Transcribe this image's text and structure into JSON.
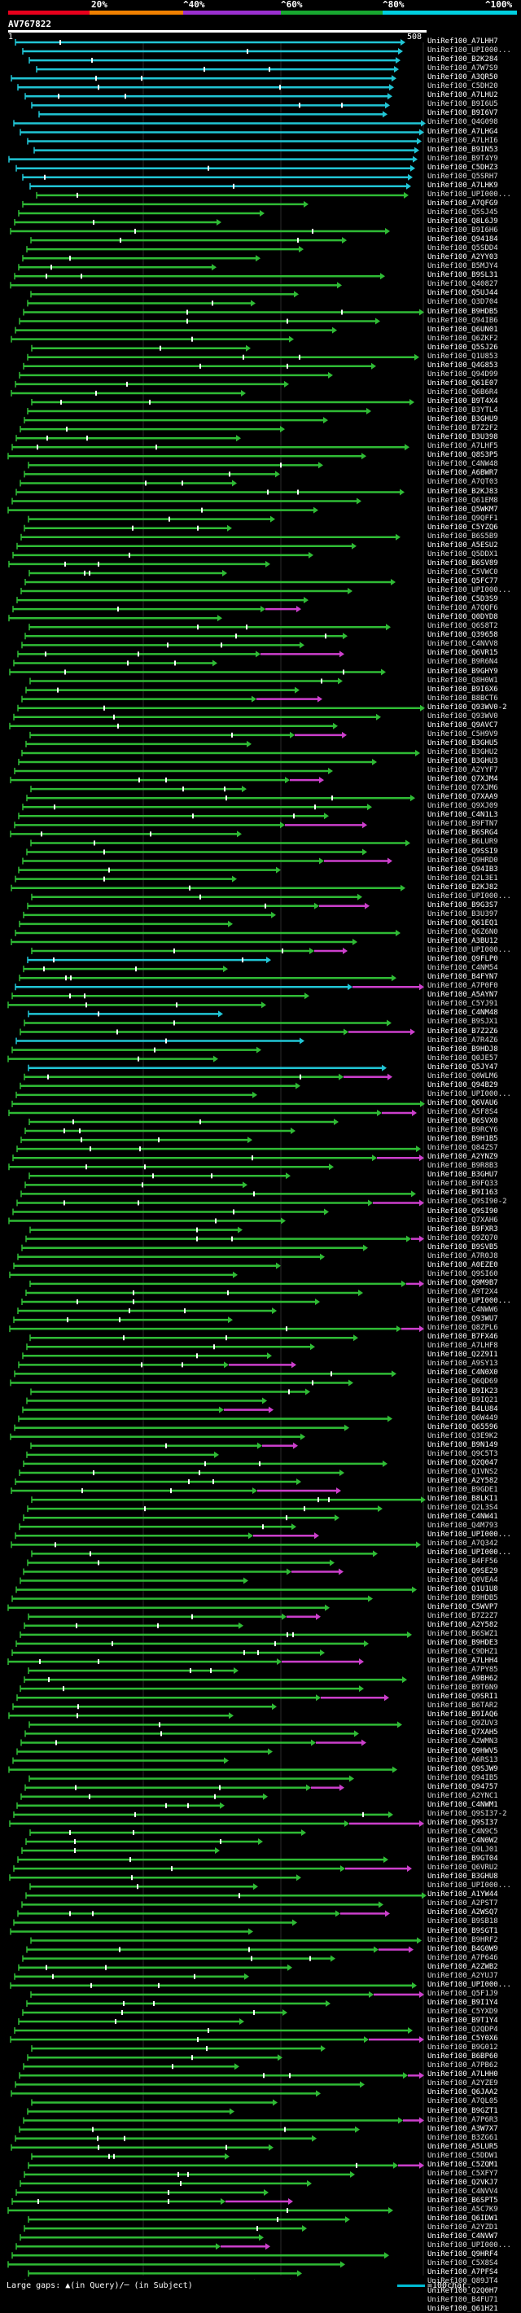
{
  "legend": {
    "labels": [
      "20%",
      "^40%",
      "^60%",
      "^80%",
      "^100%"
    ],
    "colors": [
      "#e8001c",
      "#f08000",
      "#9b30d0",
      "#18a830",
      "#00d0e0"
    ]
  },
  "query": {
    "title": "AV767822",
    "start": "1",
    "end": "508"
  },
  "hits": [
    "UniRef100_A7LHH7",
    "UniRef100_UPI000...",
    "UniRef100_B2K284",
    "UniRef100_A7W7S9",
    "UniRef100_A3QR50",
    "UniRef100_C5DH20",
    "UniRef100_A7LHU2",
    "UniRef100_B9I6U5",
    "UniRef100_B9I6V7",
    "UniRef100_Q4G098",
    "UniRef100_A7LHG4",
    "UniRef100_A7LHI6",
    "UniRef100_B9IN53",
    "UniRef100_B9T4Y9",
    "UniRef100_C5DHZ3",
    "UniRef100_Q5SRH7",
    "UniRef100_A7LHK9",
    "UniRef100_UPI000...",
    "UniRef100_A7QFG9",
    "UniRef100_Q5SJ45",
    "UniRef100_Q8L6J9",
    "UniRef100_B9I6H6",
    "UniRef100_Q94184",
    "UniRef100_Q5SDD4",
    "UniRef100_A2YY03",
    "UniRef100_B5MJY4",
    "UniRef100_B9SL31",
    "UniRef100_Q40827",
    "UniRef100_Q5UJ44",
    "UniRef100_Q3D704",
    "UniRef100_B9HDB5",
    "UniRef100_Q94IB6",
    "UniRef100_Q6UN01",
    "UniRef100_Q6ZKF2",
    "UniRef100_Q5SJ26",
    "UniRef100_Q1U853",
    "UniRef100_Q4G853",
    "UniRef100_Q94D99",
    "UniRef100_Q61E07",
    "UniRef100_Q6B6R4",
    "UniRef100_B9T4X4",
    "UniRef100_B3YTL4",
    "UniRef100_B3GHU9",
    "UniRef100_B7Z2F2",
    "UniRef100_B3U398",
    "UniRef100_A7LHF5",
    "UniRef100_Q8S3P5",
    "UniRef100_C4NW48",
    "UniRef100_A6BWR7",
    "UniRef100_A7QT03",
    "UniRef100_B2KJ83",
    "UniRef100_Q61EM8",
    "UniRef100_Q5WKM7",
    "UniRef100_Q9QFF1",
    "UniRef100_C5YZQ6",
    "UniRef100_B6S5B9",
    "UniRef100_A5ESU2",
    "UniRef100_Q5DDX1",
    "UniRef100_B6SV89",
    "UniRef100_C5VWC0",
    "UniRef100_Q5FC77",
    "UniRef100_UPI000...",
    "UniRef100_C5D3S9",
    "UniRef100_A7QQF6",
    "UniRef100_Q0DYD8",
    "UniRef100_Q6S8T2",
    "UniRef100_Q39658",
    "UniRef100_C4NVV8",
    "UniRef100_Q6VR15",
    "UniRef100_B9R6N4",
    "UniRef100_B9GHY9",
    "UniRef100_Q8H0W1",
    "UniRef100_B9I6X6",
    "UniRef100_B8BCT6",
    "UniRef100_Q93WV0-2",
    "UniRef100_Q93WV0",
    "UniRef100_Q9AVC7",
    "UniRef100_C5H9V9",
    "UniRef100_B3GHU5",
    "UniRef100_B3GHU2",
    "UniRef100_B3GHU3",
    "UniRef100_A2YYF7",
    "UniRef100_Q7XJM4",
    "UniRef100_Q7XJM6",
    "UniRef100_Q7XAA9",
    "UniRef100_Q9XJ09",
    "UniRef100_C4N1L3",
    "UniRef100_B9FTN7",
    "UniRef100_B6SRG4",
    "UniRef100_B6LUR9",
    "UniRef100_Q9SSI9",
    "UniRef100_Q9HRD0",
    "UniRef100_Q94IB3",
    "UniRef100_Q2L3E1",
    "UniRef100_B2KJ82",
    "UniRef100_UPI000...",
    "UniRef100_B9G3S7",
    "UniRef100_B3U397",
    "UniRef100_Q61EQ1",
    "UniRef100_Q6Z6N0",
    "UniRef100_A3BU12",
    "UniRef100_UPI000...",
    "UniRef100_Q9FLP0",
    "UniRef100_C4NM54",
    "UniRef100_B4FYN7",
    "UniRef100_A7P0F0",
    "UniRef100_A5AYN7",
    "UniRef100_C5YJ91",
    "UniRef100_C4NM48",
    "UniRef100_B9SJX1",
    "UniRef100_B7Z2Z6",
    "UniRef100_A7R4Z6",
    "UniRef100_B9HDJ8",
    "UniRef100_Q0JE57",
    "UniRef100_Q5JY47",
    "UniRef100_Q0WLM6",
    "UniRef100_Q94B29",
    "UniRef100_UPI000...",
    "UniRef100_Q6VAU6",
    "UniRef100_A5F8S4",
    "UniRef100_B6SVX0",
    "UniRef100_B9RCY6",
    "UniRef100_B9H1B5",
    "UniRef100_Q84ZS7",
    "UniRef100_A2YNZ9",
    "UniRef100_B9R8B3",
    "UniRef100_B3GHU7",
    "UniRef100_B9FQ33",
    "UniRef100_B9I163",
    "UniRef100_Q9SI90-2",
    "UniRef100_Q9SI90",
    "UniRef100_Q7XAH6",
    "UniRef100_B9FXR3",
    "UniRef100_Q9ZQ70",
    "UniRef100_B9SVB5",
    "UniRef100_A7R0J8",
    "UniRef100_A0EZE0",
    "UniRef100_Q9SI60",
    "UniRef100_Q9M9B7",
    "UniRef100_A9T2X4",
    "UniRef100_UPI000...",
    "UniRef100_C4NWW6",
    "UniRef100_Q93WU7",
    "UniRef100_Q8ZPL6",
    "UniRef100_B7FX46",
    "UniRef100_A7LHF8",
    "UniRef100_Q2Z9I1",
    "UniRef100_A9SY13",
    "UniRef100_C4N0X0",
    "UniRef100_Q6QD69",
    "UniRef100_B9IK23",
    "UniRef100_B9IQ21",
    "UniRef100_B4LU84",
    "UniRef100_Q6W449",
    "UniRef100_Q65596",
    "UniRef100_Q3E9K2",
    "UniRef100_B9N149",
    "UniRef100_Q9C5T3",
    "UniRef100_Q2Q047",
    "UniRef100_Q1VNS2",
    "UniRef100_A2Y582",
    "UniRef100_B9GDE1",
    "UniRef100_B8LKI1",
    "UniRef100_Q2L3S4",
    "UniRef100_C4NW41",
    "UniRef100_Q4M793",
    "UniRef100_UPI000...",
    "UniRef100_A7Q342",
    "UniRef100_UPI000...",
    "UniRef100_B4FF56",
    "UniRef100_Q9SE29",
    "UniRef100_Q0VEA4",
    "UniRef100_Q1U1U8",
    "UniRef100_B9HDB5",
    "UniRef100_C5WVP7",
    "UniRef100_B7Z2Z7",
    "UniRef100_A2Y582",
    "UniRef100_B6SWZ1",
    "UniRef100_B9HDE3",
    "UniRef100_C9DHZ1",
    "UniRef100_A7LHH4",
    "UniRef100_A7PY85",
    "UniRef100_A9BH62",
    "UniRef100_B9T6N9",
    "UniRef100_Q9SRI1",
    "UniRef100_B6TAR2",
    "UniRef100_B9IAQ6",
    "UniRef100_Q9ZUV3",
    "UniRef100_Q7XAH5",
    "UniRef100_A2WMN3",
    "UniRef100_Q9HWV5",
    "UniRef100_A6RS13",
    "UniRef100_Q9SJW9",
    "UniRef100_Q94IB5",
    "UniRef100_Q94757",
    "UniRef100_A2YNC1",
    "UniRef100_C4NWM1",
    "UniRef100_Q9SI37-2",
    "UniRef100_Q9SI37",
    "UniRef100_C4N9C5",
    "UniRef100_C4N0W2",
    "UniRef100_Q9LJ01",
    "UniRef100_B9GT04",
    "UniRef100_Q6VRU2",
    "UniRef100_B3GHU8",
    "UniRef100_UPI000...",
    "UniRef100_A1YW44",
    "UniRef100_A2PST7",
    "UniRef100_A2WSQ7",
    "UniRef100_B9SB18",
    "UniRef100_B9SGT1",
    "UniRef100_B9HRF2",
    "UniRef100_B4G0W9",
    "UniRef100_A7P646",
    "UniRef100_A2ZWB2",
    "UniRef100_A2YUJ7",
    "UniRef100_UPI000...",
    "UniRef100_Q5F1J9",
    "UniRef100_B9I1Y4",
    "UniRef100_C5YXD9",
    "UniRef100_B9T1Y4",
    "UniRef100_Q2QDP4",
    "UniRef100_C5Y0X6",
    "UniRef100_B9G012",
    "UniRef100_B6BP60",
    "UniRef100_A7PB62",
    "UniRef100_A7LHH0",
    "UniRef100_A2YZE9",
    "UniRef100_Q6JAA2",
    "UniRef100_A7QL05",
    "UniRef100_B9GZT1",
    "UniRef100_A7P6R3",
    "UniRef100_A3W7X7",
    "UniRef100_B3ZG61",
    "UniRef100_A5LUR5",
    "UniRef100_C5DDW1",
    "UniRef100_C5ZQM1",
    "UniRef100_C5XFY7",
    "UniRef100_Q2VKJ7",
    "UniRef100_C4NVV4",
    "UniRef100_B6SPT5",
    "UniRef100_A5C7K9",
    "UniRef100_Q6IDW1",
    "UniRef100_A2YZD1",
    "UniRef100_C4NVW7",
    "UniRef100_UPI000...",
    "UniRef100_Q9HRF4",
    "UniRef100_C5X8S4",
    "UniRef100_A7PFS4",
    "UniRef100_Q89JT4",
    "UniRef100_Q2Q0H7",
    "UniRef100_B4FU71",
    "UniRef100_Q61H21"
  ],
  "footer": {
    "gaps_text": "Large gaps: ▲(in Query)/─ (in Subject)",
    "scale_text": "=100char."
  }
}
